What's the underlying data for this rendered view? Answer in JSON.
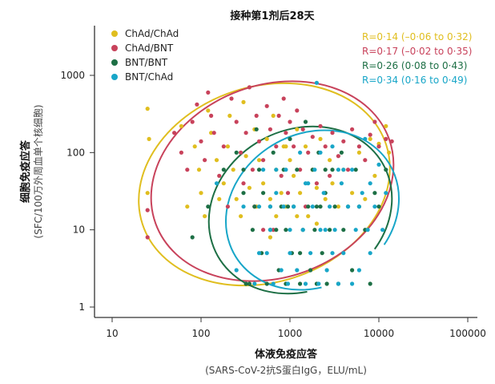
{
  "chart_data": {
    "type": "scatter",
    "title": "接种第1剂后28天",
    "xlabel": "体液免疫应答",
    "xlabel_sub": "(SARS-CoV-2抗S蛋白IgG，ELU/mL)",
    "ylabel": "细胞免疫应答",
    "ylabel_sub": "(SFC/100万外周血单个核细胞)",
    "x_scale": "log",
    "y_scale": "log",
    "xlim": [
      5,
      150000
    ],
    "ylim": [
      0.8,
      3500
    ],
    "x_ticks": [
      10,
      100,
      1000,
      10000,
      100000
    ],
    "x_tick_labels": [
      "10",
      "100",
      "1000",
      "10000",
      "100000"
    ],
    "y_ticks": [
      1,
      10,
      100,
      1000
    ],
    "y_tick_labels": [
      "1",
      "10",
      "100",
      "1000"
    ],
    "grid": false,
    "legend_position": "top-left",
    "series": [
      {
        "name": "ChAd/ChAd",
        "color": "#E0BE1F",
        "stat": "R=0·14 (–0·06 to 0·32)",
        "points": [
          [
            25,
            370
          ],
          [
            26,
            150
          ],
          [
            25,
            30
          ],
          [
            60,
            220
          ],
          [
            85,
            120
          ],
          [
            70,
            20
          ],
          [
            95,
            60
          ],
          [
            100,
            30
          ],
          [
            110,
            15
          ],
          [
            120,
            350
          ],
          [
            130,
            180
          ],
          [
            150,
            80
          ],
          [
            160,
            25
          ],
          [
            180,
            40
          ],
          [
            200,
            120
          ],
          [
            210,
            300
          ],
          [
            230,
            60
          ],
          [
            250,
            25
          ],
          [
            280,
            15
          ],
          [
            300,
            450
          ],
          [
            320,
            90
          ],
          [
            350,
            35
          ],
          [
            400,
            200
          ],
          [
            420,
            20
          ],
          [
            450,
            80
          ],
          [
            500,
            40
          ],
          [
            550,
            150
          ],
          [
            600,
            25
          ],
          [
            650,
            300
          ],
          [
            700,
            60
          ],
          [
            800,
            30
          ],
          [
            850,
            120
          ],
          [
            900,
            20
          ],
          [
            1000,
            80
          ],
          [
            1100,
            50
          ],
          [
            1200,
            200
          ],
          [
            1300,
            30
          ],
          [
            1500,
            120
          ],
          [
            1600,
            15
          ],
          [
            1800,
            60
          ],
          [
            2000,
            35
          ],
          [
            2200,
            150
          ],
          [
            2500,
            25
          ],
          [
            2800,
            80
          ],
          [
            3000,
            40
          ],
          [
            3500,
            20
          ],
          [
            4000,
            60
          ],
          [
            5000,
            30
          ],
          [
            6000,
            100
          ],
          [
            7000,
            25
          ],
          [
            8000,
            150
          ],
          [
            9000,
            50
          ],
          [
            10000,
            130
          ],
          [
            12000,
            220
          ],
          [
            13000,
            100
          ],
          [
            700,
            15
          ],
          [
            900,
            120
          ],
          [
            1200,
            15
          ],
          [
            600,
            8
          ],
          [
            2000,
            12
          ]
        ]
      },
      {
        "name": "ChAd/BNT",
        "color": "#C8425B",
        "stat": "R=0·17 (–0·02 to 0·35)",
        "points": [
          [
            25,
            8
          ],
          [
            25,
            18
          ],
          [
            50,
            180
          ],
          [
            60,
            100
          ],
          [
            70,
            60
          ],
          [
            80,
            250
          ],
          [
            90,
            420
          ],
          [
            100,
            140
          ],
          [
            110,
            80
          ],
          [
            120,
            600
          ],
          [
            130,
            300
          ],
          [
            140,
            180
          ],
          [
            160,
            50
          ],
          [
            180,
            120
          ],
          [
            200,
            20
          ],
          [
            220,
            500
          ],
          [
            250,
            250
          ],
          [
            280,
            100
          ],
          [
            300,
            40
          ],
          [
            320,
            180
          ],
          [
            350,
            700
          ],
          [
            380,
            60
          ],
          [
            400,
            20
          ],
          [
            420,
            300
          ],
          [
            450,
            140
          ],
          [
            500,
            80
          ],
          [
            550,
            400
          ],
          [
            600,
            200
          ],
          [
            650,
            10
          ],
          [
            700,
            120
          ],
          [
            750,
            300
          ],
          [
            800,
            50
          ],
          [
            850,
            500
          ],
          [
            900,
            180
          ],
          [
            950,
            30
          ],
          [
            1000,
            250
          ],
          [
            1100,
            120
          ],
          [
            1200,
            350
          ],
          [
            1300,
            60
          ],
          [
            1400,
            200
          ],
          [
            1600,
            100
          ],
          [
            1800,
            160
          ],
          [
            2000,
            40
          ],
          [
            2200,
            220
          ],
          [
            2500,
            120
          ],
          [
            2800,
            50
          ],
          [
            3000,
            180
          ],
          [
            3500,
            90
          ],
          [
            4000,
            140
          ],
          [
            4500,
            60
          ],
          [
            5000,
            200
          ],
          [
            6000,
            120
          ],
          [
            7000,
            80
          ],
          [
            8000,
            170
          ],
          [
            9000,
            250
          ],
          [
            10000,
            120
          ],
          [
            12000,
            150
          ],
          [
            14000,
            140
          ],
          [
            1500,
            20
          ],
          [
            500,
            10
          ]
        ]
      },
      {
        "name": "BNT/BNT",
        "color": "#1D6F45",
        "stat": "R=0·26 (0·08 to 0·43)",
        "points": [
          [
            80,
            8
          ],
          [
            120,
            20
          ],
          [
            180,
            60
          ],
          [
            250,
            100
          ],
          [
            300,
            30
          ],
          [
            320,
            2
          ],
          [
            350,
            2
          ],
          [
            380,
            10
          ],
          [
            400,
            20
          ],
          [
            420,
            200
          ],
          [
            450,
            60
          ],
          [
            480,
            5
          ],
          [
            500,
            30
          ],
          [
            550,
            2
          ],
          [
            600,
            20
          ],
          [
            650,
            100
          ],
          [
            700,
            10
          ],
          [
            750,
            3
          ],
          [
            800,
            20
          ],
          [
            850,
            60
          ],
          [
            900,
            2
          ],
          [
            950,
            20
          ],
          [
            1000,
            150
          ],
          [
            1050,
            5
          ],
          [
            1100,
            20
          ],
          [
            1200,
            60
          ],
          [
            1300,
            2
          ],
          [
            1400,
            10
          ],
          [
            1500,
            250
          ],
          [
            1600,
            20
          ],
          [
            1700,
            3
          ],
          [
            1800,
            60
          ],
          [
            1900,
            10
          ],
          [
            2000,
            2
          ],
          [
            2100,
            100
          ],
          [
            2200,
            20
          ],
          [
            2300,
            5
          ],
          [
            2500,
            30
          ],
          [
            2600,
            2
          ],
          [
            2800,
            10
          ],
          [
            3000,
            60
          ],
          [
            3200,
            20
          ],
          [
            3500,
            2
          ],
          [
            3800,
            100
          ],
          [
            4000,
            10
          ],
          [
            4500,
            20
          ],
          [
            5000,
            3
          ],
          [
            5500,
            60
          ],
          [
            6000,
            20
          ],
          [
            7000,
            10
          ],
          [
            8000,
            2
          ],
          [
            9000,
            30
          ],
          [
            10000,
            20
          ],
          [
            12000,
            60
          ],
          [
            600,
            10
          ],
          [
            900,
            10
          ],
          [
            1300,
            5
          ],
          [
            2000,
            20
          ],
          [
            2500,
            60
          ],
          [
            300,
            60
          ]
        ]
      },
      {
        "name": "BNT/ChAd",
        "color": "#18A6C8",
        "stat": "R=0·34 (0·16 to 0·49)",
        "points": [
          [
            150,
            40
          ],
          [
            250,
            3
          ],
          [
            300,
            20
          ],
          [
            400,
            2
          ],
          [
            450,
            20
          ],
          [
            500,
            60
          ],
          [
            550,
            5
          ],
          [
            600,
            10
          ],
          [
            650,
            2
          ],
          [
            700,
            30
          ],
          [
            800,
            3
          ],
          [
            850,
            20
          ],
          [
            900,
            60
          ],
          [
            950,
            2
          ],
          [
            1000,
            10
          ],
          [
            1100,
            20
          ],
          [
            1200,
            3
          ],
          [
            1300,
            100
          ],
          [
            1400,
            10
          ],
          [
            1500,
            2
          ],
          [
            1600,
            40
          ],
          [
            1700,
            5
          ],
          [
            1800,
            20
          ],
          [
            1900,
            60
          ],
          [
            2000,
            800
          ],
          [
            2100,
            2
          ],
          [
            2200,
            10
          ],
          [
            2400,
            30
          ],
          [
            2600,
            3
          ],
          [
            2800,
            20
          ],
          [
            3000,
            120
          ],
          [
            3200,
            10
          ],
          [
            3500,
            2
          ],
          [
            3800,
            40
          ],
          [
            4000,
            5
          ],
          [
            4500,
            20
          ],
          [
            5000,
            60
          ],
          [
            5500,
            10
          ],
          [
            6000,
            3
          ],
          [
            6500,
            30
          ],
          [
            7000,
            150
          ],
          [
            7500,
            10
          ],
          [
            8000,
            40
          ],
          [
            9000,
            20
          ],
          [
            10000,
            70
          ],
          [
            11000,
            10
          ],
          [
            12000,
            30
          ],
          [
            700,
            60
          ],
          [
            1000,
            5
          ],
          [
            1500,
            40
          ],
          [
            2500,
            10
          ],
          [
            3000,
            5
          ],
          [
            4000,
            60
          ],
          [
            600,
            20
          ],
          [
            450,
            5
          ],
          [
            5000,
            2
          ],
          [
            6000,
            20
          ],
          [
            8000,
            5
          ],
          [
            3500,
            60
          ],
          [
            2200,
            100
          ]
        ]
      }
    ]
  }
}
